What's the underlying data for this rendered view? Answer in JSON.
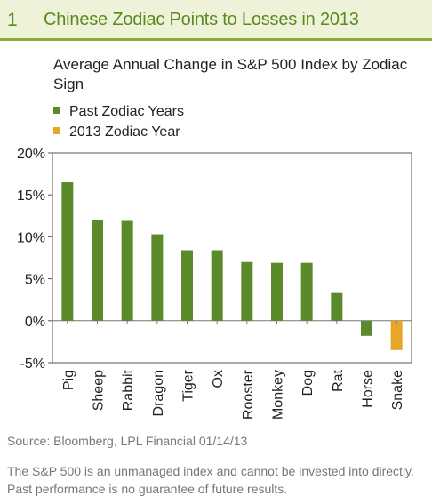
{
  "header": {
    "number": "1",
    "title": "Chinese Zodiac Points to Losses in 2013"
  },
  "chart_data": {
    "type": "bar",
    "title": "Average Annual Change in S&P 500 Index by Zodiac Sign",
    "categories": [
      "Pig",
      "Sheep",
      "Rabbit",
      "Dragon",
      "Tiger",
      "Ox",
      "Rooster",
      "Monkey",
      "Dog",
      "Rat",
      "Horse",
      "Snake"
    ],
    "values": [
      16.5,
      12.0,
      11.9,
      10.3,
      8.4,
      8.4,
      7.0,
      6.9,
      6.9,
      3.3,
      -1.8,
      -3.5
    ],
    "series": [
      {
        "name": "Past Zodiac Years",
        "color": "#5b8a2a",
        "categories": [
          "Pig",
          "Sheep",
          "Rabbit",
          "Dragon",
          "Tiger",
          "Ox",
          "Rooster",
          "Monkey",
          "Dog",
          "Rat",
          "Horse"
        ]
      },
      {
        "name": "2013 Zodiac Year",
        "color": "#e9a526",
        "categories": [
          "Snake"
        ]
      }
    ],
    "ylim": [
      -5,
      20
    ],
    "yticks": [
      "20%",
      "15%",
      "10%",
      "5%",
      "0%",
      "-5%"
    ],
    "ytick_values": [
      20,
      15,
      10,
      5,
      0,
      -5
    ],
    "xlabel": "",
    "ylabel": "",
    "grid": false,
    "legend_position": "top-left"
  },
  "source": "Source: Bloomberg, LPL Financial 01/14/13",
  "disclaimer": "The S&P 500 is an unmanaged index and cannot be invested into directly. Past performance is no guarantee of future results."
}
